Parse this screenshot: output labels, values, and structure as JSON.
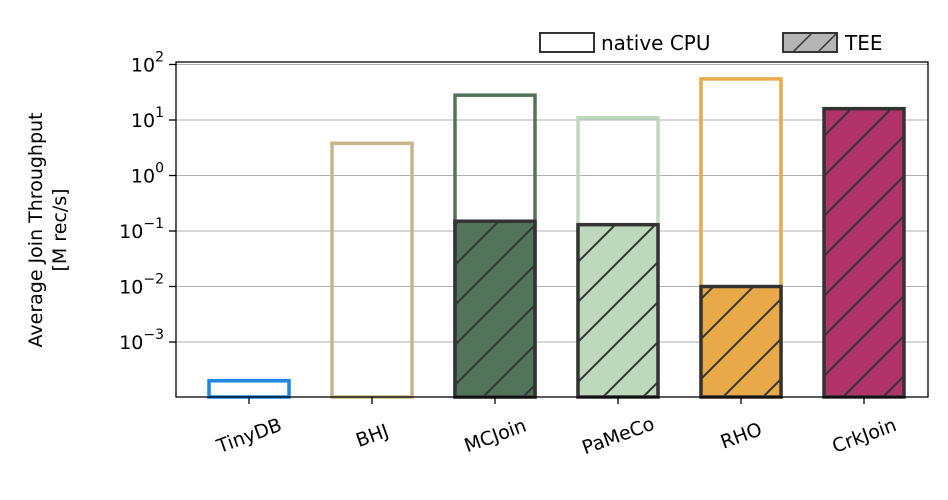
{
  "chart_data": {
    "type": "bar",
    "title": "",
    "xlabel": "",
    "ylabel_lines": [
      "Average Join Throughput",
      "[M rec/s]"
    ],
    "yscale": "log",
    "ylim": [
      0.0001,
      120
    ],
    "y_ticks": [
      {
        "value": 0.001,
        "mantissa": "10",
        "exponent": "−3"
      },
      {
        "value": 0.01,
        "mantissa": "10",
        "exponent": "−2"
      },
      {
        "value": 0.1,
        "mantissa": "10",
        "exponent": "−1"
      },
      {
        "value": 1,
        "mantissa": "10",
        "exponent": "0"
      },
      {
        "value": 10,
        "mantissa": "10",
        "exponent": "1"
      },
      {
        "value": 100,
        "mantissa": "10",
        "exponent": "2"
      }
    ],
    "grid": "y-major",
    "legend_position": "top-right",
    "categories": [
      "TinyDB",
      "BHJ",
      "MCJoin",
      "PaMeCo",
      "RHO",
      "CrkJoin"
    ],
    "category_colors": [
      "#1E88E5",
      "#C8B48A",
      "#52745A",
      "#BDD9BC",
      "#E8AA48",
      "#B0336A"
    ],
    "series": [
      {
        "name": "native CPU",
        "style": "outline",
        "values": [
          0.0002,
          3.8,
          28,
          11,
          55,
          null
        ]
      },
      {
        "name": "TEE",
        "style": "filled-hatched",
        "values": [
          null,
          null,
          0.15,
          0.13,
          0.01,
          16
        ]
      }
    ],
    "legend": [
      {
        "label": "native CPU",
        "swatch": "outline"
      },
      {
        "label": "TEE",
        "swatch": "hatched"
      }
    ]
  }
}
